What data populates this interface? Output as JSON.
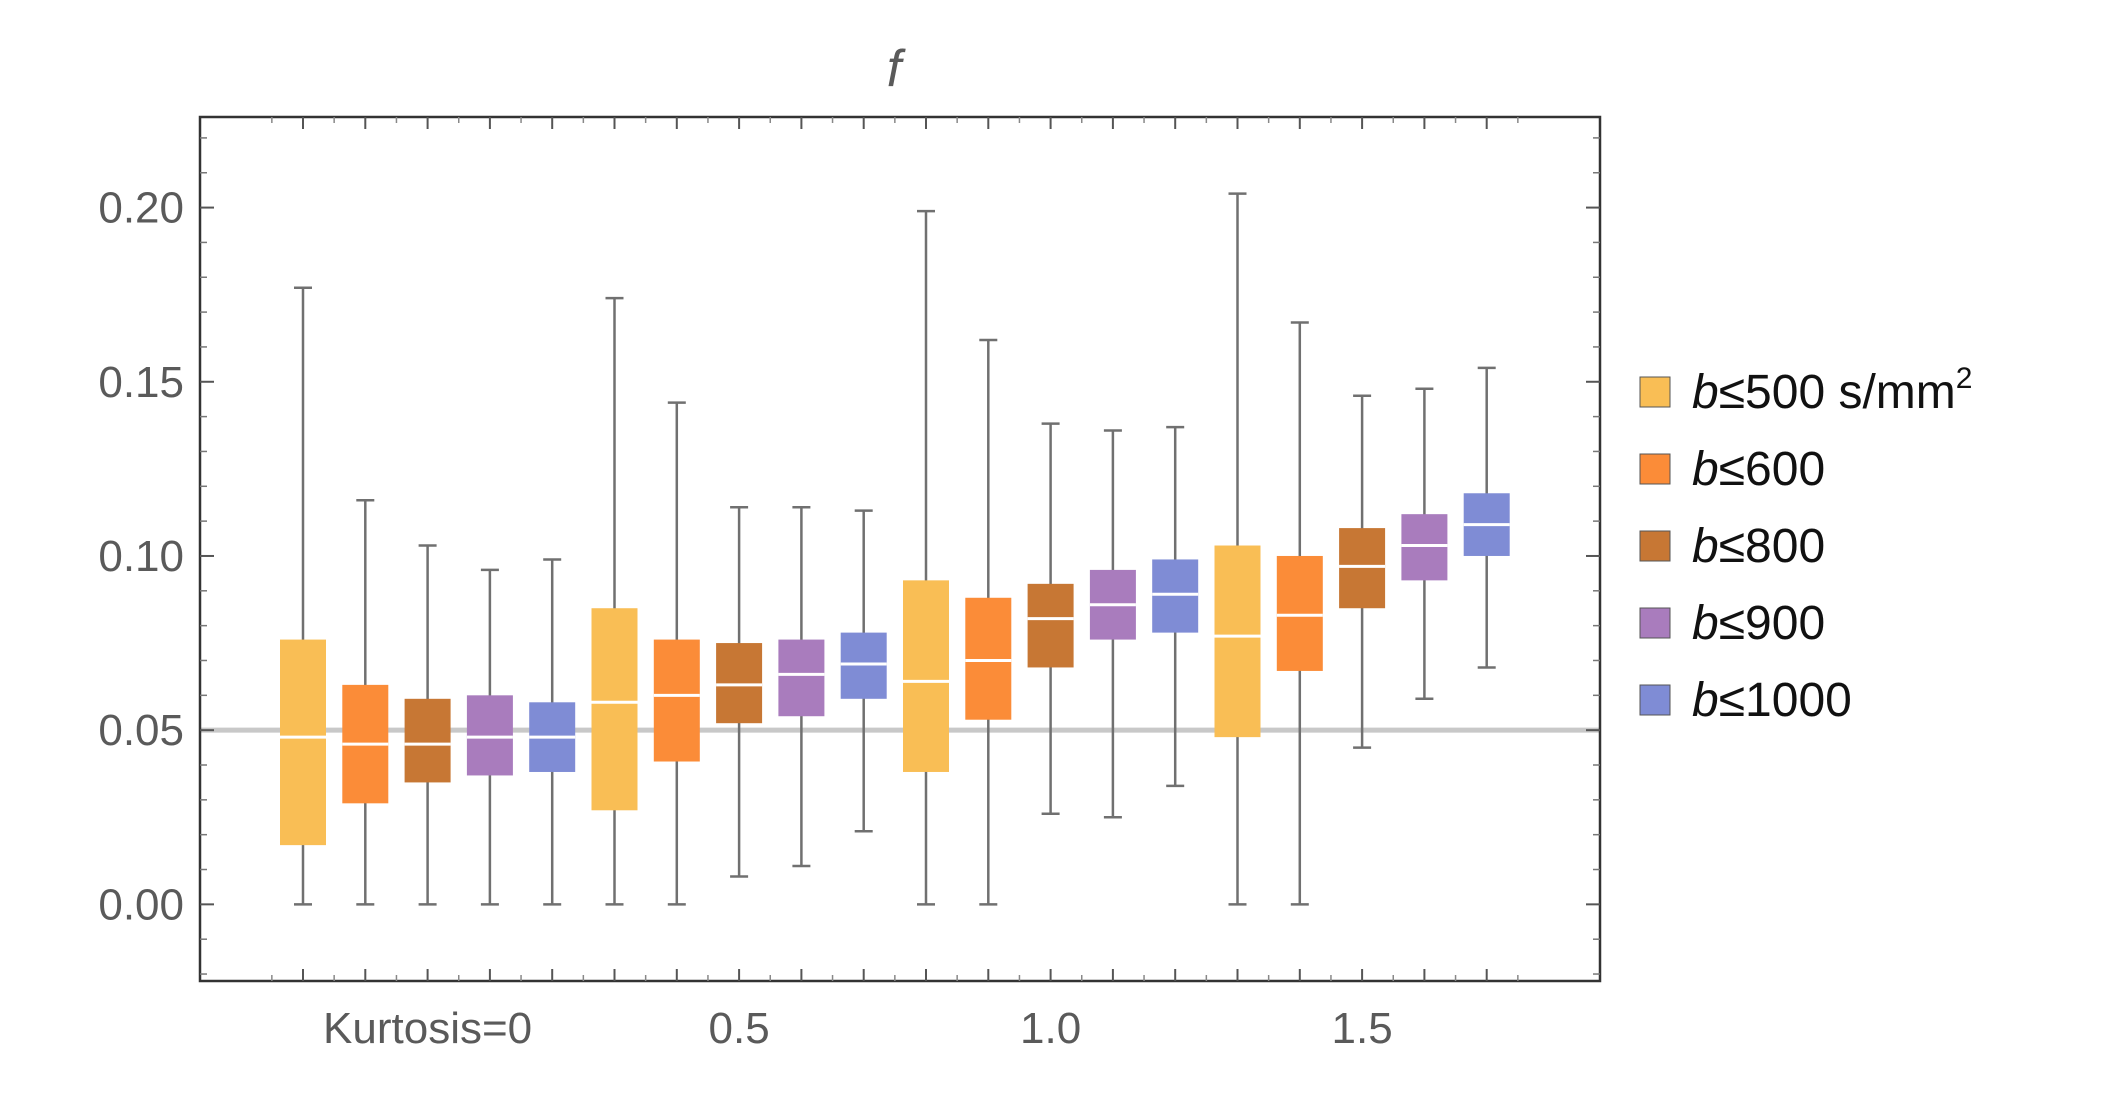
{
  "chart_data": {
    "type": "boxplot",
    "title": "f",
    "categories": [
      "Kurtosis=0",
      "0.5",
      "1.0",
      "1.5"
    ],
    "y_ticks": [
      "0.00",
      "0.05",
      "0.10",
      "0.15",
      "0.20"
    ],
    "ylim": [
      -0.022,
      0.226
    ],
    "reference_line": 0.05,
    "grid": false,
    "legend_position": "right",
    "series": [
      {
        "name": "b≤500 s/mm²",
        "name_var": "b",
        "name_rest": "≤500 s/mm",
        "name_sup": "2",
        "color": "#F9BE55",
        "boxes": [
          {
            "min": 0.0,
            "q1": 0.017,
            "median": 0.048,
            "q3": 0.076,
            "max": 0.177
          },
          {
            "min": 0.0,
            "q1": 0.027,
            "median": 0.058,
            "q3": 0.085,
            "max": 0.174
          },
          {
            "min": 0.0,
            "q1": 0.038,
            "median": 0.064,
            "q3": 0.093,
            "max": 0.199
          },
          {
            "min": 0.0,
            "q1": 0.048,
            "median": 0.077,
            "q3": 0.103,
            "max": 0.204
          }
        ]
      },
      {
        "name": "b≤600",
        "name_var": "b",
        "name_rest": "≤600",
        "name_sup": "",
        "color": "#FB8C38",
        "boxes": [
          {
            "min": 0.0,
            "q1": 0.029,
            "median": 0.046,
            "q3": 0.063,
            "max": 0.116
          },
          {
            "min": 0.0,
            "q1": 0.041,
            "median": 0.06,
            "q3": 0.076,
            "max": 0.144
          },
          {
            "min": 0.0,
            "q1": 0.053,
            "median": 0.07,
            "q3": 0.088,
            "max": 0.162
          },
          {
            "min": 0.0,
            "q1": 0.067,
            "median": 0.083,
            "q3": 0.1,
            "max": 0.167
          }
        ]
      },
      {
        "name": "b≤800",
        "name_var": "b",
        "name_rest": "≤800",
        "name_sup": "",
        "color": "#C77734",
        "boxes": [
          {
            "min": 0.0,
            "q1": 0.035,
            "median": 0.046,
            "q3": 0.059,
            "max": 0.103
          },
          {
            "min": 0.008,
            "q1": 0.052,
            "median": 0.063,
            "q3": 0.075,
            "max": 0.114
          },
          {
            "min": 0.026,
            "q1": 0.068,
            "median": 0.082,
            "q3": 0.092,
            "max": 0.138
          },
          {
            "min": 0.045,
            "q1": 0.085,
            "median": 0.097,
            "q3": 0.108,
            "max": 0.146
          }
        ]
      },
      {
        "name": "b≤900",
        "name_var": "b",
        "name_rest": "≤900",
        "name_sup": "",
        "color": "#A97CBD",
        "boxes": [
          {
            "min": 0.0,
            "q1": 0.037,
            "median": 0.048,
            "q3": 0.06,
            "max": 0.096
          },
          {
            "min": 0.011,
            "q1": 0.054,
            "median": 0.066,
            "q3": 0.076,
            "max": 0.114
          },
          {
            "min": 0.025,
            "q1": 0.076,
            "median": 0.086,
            "q3": 0.096,
            "max": 0.136
          },
          {
            "min": 0.059,
            "q1": 0.093,
            "median": 0.103,
            "q3": 0.112,
            "max": 0.148
          }
        ]
      },
      {
        "name": "b≤1000",
        "name_var": "b",
        "name_rest": "≤1000",
        "name_sup": "",
        "color": "#7F8CD5",
        "boxes": [
          {
            "min": 0.0,
            "q1": 0.038,
            "median": 0.048,
            "q3": 0.058,
            "max": 0.099
          },
          {
            "min": 0.021,
            "q1": 0.059,
            "median": 0.069,
            "q3": 0.078,
            "max": 0.113
          },
          {
            "min": 0.034,
            "q1": 0.078,
            "median": 0.089,
            "q3": 0.099,
            "max": 0.137
          },
          {
            "min": 0.068,
            "q1": 0.1,
            "median": 0.109,
            "q3": 0.118,
            "max": 0.154
          }
        ]
      }
    ]
  }
}
